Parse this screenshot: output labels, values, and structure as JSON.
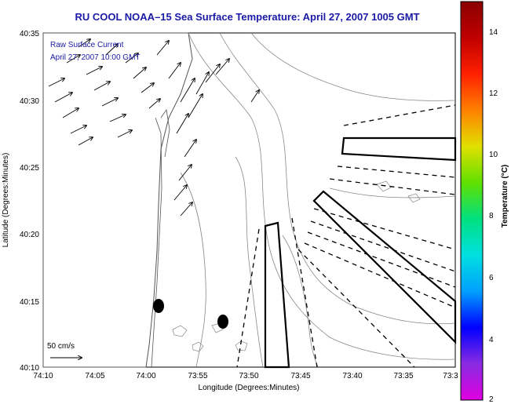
{
  "title": "RU COOL  NOAA–15  Sea Surface Temperature:  April 27, 2007 1005 GMT",
  "overlay": {
    "line1": "Raw Surface Current",
    "line2": "April 27, 2007  10:00 GMT",
    "scale_label": "50 cm/s"
  },
  "axes": {
    "xlabel": "Longitude (Degrees:Minutes)",
    "ylabel": "Latitude (Degrees:Minutes)",
    "xticks": [
      "74:10",
      "74:05",
      "74:00",
      "73:55",
      "73:50",
      "73:45",
      "73:40",
      "73:35",
      "73:3"
    ],
    "yticks": [
      "40:35",
      "40:30",
      "40:25",
      "40:20",
      "40:15",
      "40:10"
    ]
  },
  "colorbar": {
    "label": "Temperature (°C)",
    "ticks": [
      "14",
      "12",
      "10",
      "8",
      "6",
      "4",
      "2"
    ],
    "stops": [
      "#e000e0",
      "#8a2be2",
      "#0000ff",
      "#00a0ff",
      "#00e0e0",
      "#00e080",
      "#60e000",
      "#e0e000",
      "#ff8000",
      "#ff2000",
      "#c00000",
      "#8b0000"
    ]
  },
  "map_features": {
    "closed_polygons": 3,
    "dashed_lines": 12,
    "black_markers": 2
  }
}
